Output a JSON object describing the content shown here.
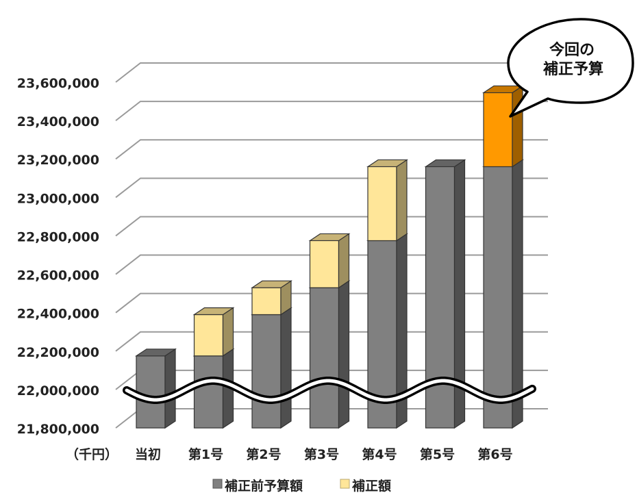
{
  "chart_data": {
    "type": "bar",
    "stacked": true,
    "three_d": true,
    "axis_break": true,
    "unit_label": "（千円）",
    "categories": [
      "当初",
      "第1号",
      "第2号",
      "第3号",
      "第4号",
      "第5号",
      "第6号"
    ],
    "series": [
      {
        "name": "補正前予算額",
        "values": [
          22175000,
          22175000,
          22390000,
          22530000,
          22775000,
          23160000,
          23160000
        ],
        "color": "#808080"
      },
      {
        "name": "補正額",
        "values": [
          0,
          215000,
          140000,
          245000,
          385000,
          0,
          385000
        ],
        "color": "#FFE699"
      }
    ],
    "highlight": {
      "category": "第6号",
      "series": "補正額",
      "color": "#FF9900"
    },
    "y_ticks": [
      "21,800,000",
      "22,000,000",
      "22,200,000",
      "22,400,000",
      "22,600,000",
      "22,800,000",
      "23,000,000",
      "23,200,000",
      "23,400,000",
      "23,600,000"
    ],
    "ylim": [
      21800000,
      23600000
    ],
    "grid": true,
    "legend_position": "bottom",
    "callout": {
      "line1": "今回の",
      "line2": "補正予算"
    }
  }
}
